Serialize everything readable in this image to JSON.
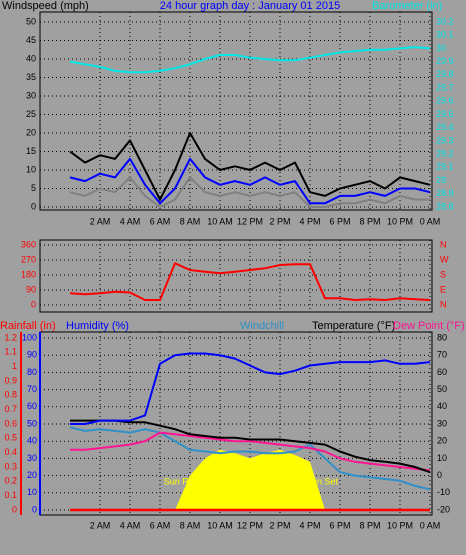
{
  "chart_data": [
    {
      "type": "line",
      "title": "24 hour graph day : January 01 2015",
      "ylabel": "Windspeed (mph)",
      "y2label": "Barometer (in)",
      "x": [
        0,
        1,
        2,
        3,
        4,
        5,
        6,
        7,
        8,
        9,
        10,
        11,
        12,
        13,
        14,
        15,
        16,
        17,
        18,
        19,
        20,
        21,
        22,
        23,
        24
      ],
      "xlim": [
        -2,
        24
      ],
      "xticks": [
        {
          "value": 2,
          "label": "2 AM"
        },
        {
          "value": 4,
          "label": "4 AM"
        },
        {
          "value": 6,
          "label": "6 AM"
        },
        {
          "value": 8,
          "label": "8 AM"
        },
        {
          "value": 10,
          "label": "10 AM"
        },
        {
          "value": 12,
          "label": "12 PM"
        },
        {
          "value": 14,
          "label": "2 PM"
        },
        {
          "value": 16,
          "label": "4 PM"
        },
        {
          "value": 18,
          "label": "6 PM"
        },
        {
          "value": 20,
          "label": "8 PM"
        },
        {
          "value": 22,
          "label": "10 PM"
        },
        {
          "value": 24,
          "label": "0 AM"
        }
      ],
      "ylim": [
        0,
        50
      ],
      "yticks": [
        0,
        5,
        10,
        15,
        20,
        25,
        30,
        35,
        40,
        45,
        50
      ],
      "y2lim": [
        28.8,
        30.2
      ],
      "y2ticks": [
        28.8,
        28.9,
        29,
        29.1,
        29.2,
        29.3,
        29.4,
        29.5,
        29.6,
        29.7,
        29.8,
        29.9,
        30,
        30.1,
        30.2
      ],
      "grid": true,
      "series": [
        {
          "color": "#000000",
          "values": [
            15,
            12,
            14,
            13,
            18,
            10,
            2,
            10,
            20,
            13,
            10,
            11,
            10,
            12,
            10,
            12,
            4,
            3,
            5,
            6,
            7,
            5,
            8,
            7,
            6
          ]
        },
        {
          "color": "#808080",
          "values": [
            4,
            3,
            5,
            4,
            8,
            3,
            0,
            2,
            8,
            4,
            3,
            4,
            3,
            4,
            3,
            4,
            0,
            0,
            1,
            1,
            2,
            1,
            3,
            2,
            2
          ]
        },
        {
          "color": "#0000ff",
          "values": [
            8,
            7,
            9,
            8,
            13,
            6,
            1,
            5,
            13,
            8,
            6,
            7,
            6,
            8,
            6,
            7,
            1,
            1,
            3,
            3,
            4,
            3,
            5,
            5,
            4
          ]
        },
        {
          "color": "#00e8e8",
          "axis": "y2",
          "values": [
            29.9,
            29.88,
            29.86,
            29.83,
            29.82,
            29.82,
            29.83,
            29.85,
            29.88,
            29.92,
            29.95,
            29.95,
            29.93,
            29.92,
            29.91,
            29.91,
            29.93,
            29.95,
            29.97,
            29.98,
            29.99,
            29.99,
            30.0,
            30.01,
            30.0
          ]
        }
      ]
    },
    {
      "type": "line",
      "x": [
        0,
        1,
        2,
        3,
        4,
        5,
        6,
        7,
        8,
        9,
        10,
        11,
        12,
        13,
        14,
        15,
        16,
        17,
        18,
        19,
        20,
        21,
        22,
        23,
        24
      ],
      "xlim": [
        -2,
        24
      ],
      "xticks": [
        2,
        4,
        6,
        8,
        10,
        12,
        14,
        16,
        18,
        20,
        22,
        24
      ],
      "ylim": [
        0,
        360
      ],
      "yticks": [
        0,
        90,
        180,
        270,
        360
      ],
      "y2lim": [
        0,
        360
      ],
      "y2ticks": [
        {
          "value": 0,
          "label": "N"
        },
        {
          "value": 90,
          "label": "E"
        },
        {
          "value": 180,
          "label": "S"
        },
        {
          "value": 270,
          "label": "W"
        },
        {
          "value": 360,
          "label": "N"
        }
      ],
      "grid": true,
      "series": [
        {
          "color": "#ff0000",
          "values": [
            70,
            65,
            70,
            80,
            75,
            30,
            30,
            250,
            210,
            200,
            190,
            200,
            210,
            220,
            240,
            245,
            245,
            40,
            40,
            30,
            35,
            30,
            40,
            35,
            30
          ]
        }
      ]
    },
    {
      "type": "line",
      "x": [
        0,
        1,
        2,
        3,
        4,
        5,
        6,
        7,
        8,
        9,
        10,
        11,
        12,
        13,
        14,
        15,
        16,
        17,
        18,
        19,
        20,
        21,
        22,
        23,
        24
      ],
      "xlim": [
        -2,
        24
      ],
      "xticks": [
        {
          "value": 2,
          "label": "2 AM"
        },
        {
          "value": 4,
          "label": "4 AM"
        },
        {
          "value": 6,
          "label": "6 AM"
        },
        {
          "value": 8,
          "label": "8 AM"
        },
        {
          "value": 10,
          "label": "10 AM"
        },
        {
          "value": 12,
          "label": "12 PM"
        },
        {
          "value": 14,
          "label": "2 PM"
        },
        {
          "value": 16,
          "label": "4 PM"
        },
        {
          "value": 18,
          "label": "6 PM"
        },
        {
          "value": 20,
          "label": "8 PM"
        },
        {
          "value": 22,
          "label": "10 PM"
        },
        {
          "value": 24,
          "label": "0 AM"
        }
      ],
      "axes": {
        "rain": {
          "lim": [
            0,
            1.2
          ],
          "ticks": [
            0,
            0.1,
            0.2,
            0.3,
            0.4,
            0.5,
            0.6,
            0.7,
            0.8,
            0.9,
            1,
            1.1,
            1.2
          ],
          "color": "#ff0000"
        },
        "humidity": {
          "lim": [
            0,
            100
          ],
          "ticks": [
            0,
            10,
            20,
            30,
            40,
            50,
            60,
            70,
            80,
            90,
            100
          ],
          "color": "#0000ff"
        },
        "temperature": {
          "lim": [
            -20,
            80
          ],
          "ticks": [
            -20,
            -10,
            0,
            10,
            20,
            30,
            40,
            50,
            60,
            70,
            80
          ],
          "color": "#000000"
        }
      },
      "grid": true,
      "annotations": [
        "Sun Rise",
        "Sun Set"
      ],
      "series": [
        {
          "color": "#ffff00",
          "axis": "humidity",
          "area": true,
          "values": [
            0,
            0,
            0,
            0,
            0,
            0,
            0,
            0,
            20,
            30,
            35,
            33,
            30,
            33,
            35,
            32,
            28,
            0,
            0,
            0,
            0,
            0,
            0,
            0,
            0
          ]
        },
        {
          "name": "Rainfall (in)",
          "color": "#ff0000",
          "axis": "rain",
          "values": [
            0,
            0,
            0,
            0,
            0,
            0,
            0,
            0,
            0,
            0,
            0,
            0,
            0,
            0,
            0,
            0,
            0,
            0,
            0,
            0,
            0,
            0,
            0,
            0,
            0
          ]
        },
        {
          "name": "Windchill",
          "color": "#3090c8",
          "axis": "temperature",
          "values": [
            28,
            26,
            27,
            26,
            25,
            27,
            25,
            20,
            15,
            14,
            13,
            14,
            14,
            13,
            13,
            14,
            18,
            10,
            2,
            0,
            -1,
            -2,
            -3,
            -6,
            -8
          ]
        },
        {
          "name": "Dew Point (°F)",
          "color": "#ff1493",
          "axis": "temperature",
          "values": [
            15,
            15,
            16,
            17,
            18,
            20,
            25,
            24,
            23,
            22,
            21,
            20,
            20,
            19,
            18,
            17,
            16,
            14,
            10,
            8,
            7,
            6,
            5,
            4,
            3
          ]
        },
        {
          "name": "Temperature (°F)",
          "color": "#000000",
          "axis": "temperature",
          "values": [
            32,
            32,
            32,
            32,
            31,
            31,
            29,
            27,
            24,
            23,
            22,
            22,
            21,
            21,
            21,
            20,
            19,
            18,
            14,
            11,
            9,
            8,
            7,
            5,
            2
          ]
        },
        {
          "name": "Humidity (%)",
          "color": "#0000ff",
          "axis": "humidity",
          "values": [
            50,
            50,
            52,
            52,
            52,
            55,
            85,
            90,
            91,
            91,
            90,
            88,
            84,
            80,
            79,
            81,
            84,
            85,
            86,
            86,
            86,
            87,
            85,
            85,
            86
          ]
        }
      ]
    }
  ]
}
